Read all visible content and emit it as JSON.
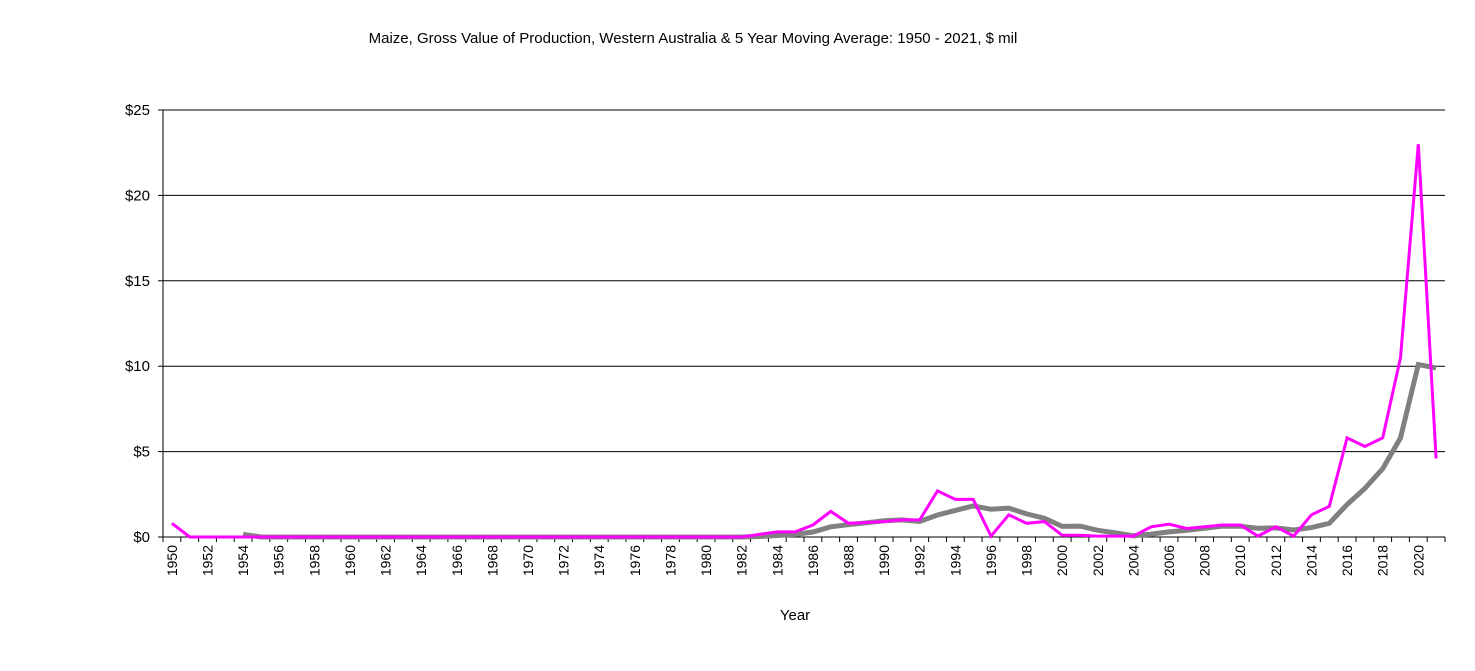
{
  "chart_data": {
    "type": "line",
    "title": "Maize, Gross Value of Production, Western Australia & 5 Year Moving Average: 1950 - 2021, $ mil",
    "xlabel": "Year",
    "ylabel": "",
    "ylim": [
      0,
      25
    ],
    "y_ticks": [
      0,
      5,
      10,
      15,
      20,
      25
    ],
    "y_tick_labels": [
      "$0",
      "$5",
      "$10",
      "$15",
      "$20",
      "$25"
    ],
    "grid": true,
    "legend": "none",
    "x_start": 1950,
    "x_end": 2021,
    "x_tick_label_step": 2,
    "series": [
      {
        "name": "Gross Value of Production",
        "color": "#FF00FF",
        "start_year": 1950,
        "values": [
          0.8,
          0,
          0,
          0,
          0,
          0,
          0,
          0,
          0,
          0,
          0,
          0,
          0,
          0,
          0,
          0,
          0,
          0,
          0,
          0,
          0,
          0,
          0,
          0,
          0,
          0,
          0,
          0,
          0,
          0,
          0,
          0,
          0,
          0.15,
          0.3,
          0.3,
          0.7,
          1.5,
          0.8,
          0.85,
          0.9,
          1.0,
          1.0,
          2.7,
          2.2,
          2.2,
          0.05,
          1.3,
          0.8,
          0.9,
          0.1,
          0.1,
          0.05,
          0.05,
          0.05,
          0.6,
          0.75,
          0.5,
          0.6,
          0.7,
          0.7,
          0.05,
          0.6,
          0.05,
          1.3,
          1.8,
          5.8,
          5.3,
          5.8,
          10.5,
          23.0,
          4.6
        ]
      },
      {
        "name": "5 Year Moving Average",
        "color": "#808080",
        "start_year": 1954,
        "values": [
          0.16,
          0,
          0,
          0,
          0,
          0,
          0,
          0,
          0,
          0,
          0,
          0,
          0,
          0,
          0,
          0,
          0,
          0,
          0,
          0,
          0,
          0,
          0,
          0,
          0,
          0,
          0,
          0,
          0,
          0.03,
          0.09,
          0.15,
          0.29,
          0.6,
          0.72,
          0.83,
          0.95,
          1.0,
          0.91,
          1.29,
          1.56,
          1.82,
          1.63,
          1.69,
          1.35,
          1.1,
          0.62,
          0.64,
          0.39,
          0.24,
          0.07,
          0.17,
          0.3,
          0.39,
          0.51,
          0.64,
          0.63,
          0.51,
          0.53,
          0.41,
          0.55,
          0.8,
          1.9,
          2.85,
          4.0,
          5.8,
          10.1,
          9.9
        ]
      }
    ]
  }
}
